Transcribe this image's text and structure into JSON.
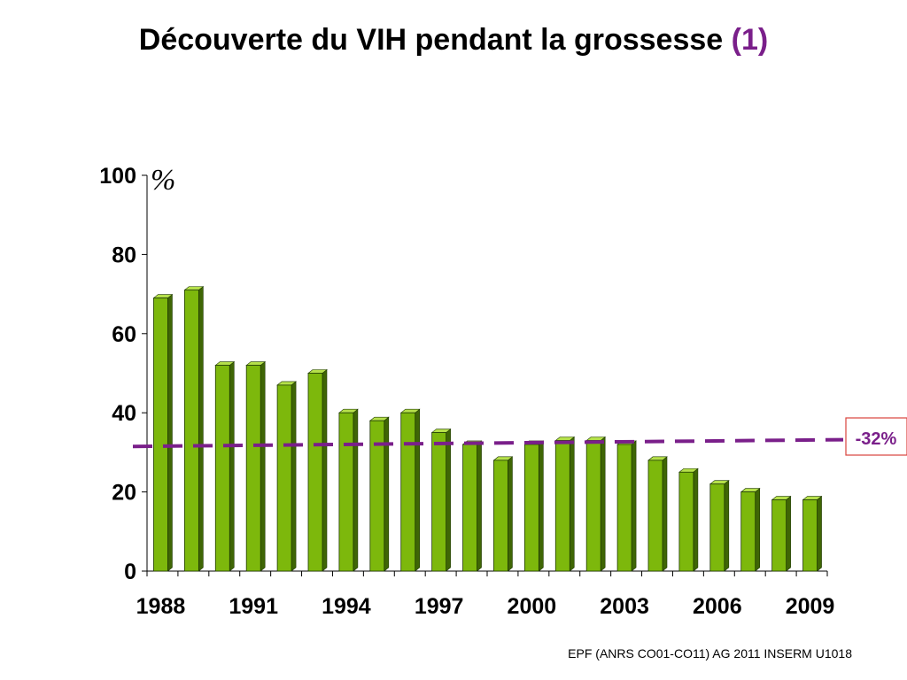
{
  "slide": {
    "title_main": "Découverte du VIH pendant la grossesse",
    "title_suffix": "(1)",
    "source": "EPF (ANRS CO01-CO11) AG 2011 INSERM U1018"
  },
  "colors": {
    "bar_front": "#7db80c",
    "bar_side": "#3f6605",
    "bar_top": "#b5e04a",
    "reference_line": "#7a1f8a",
    "annotation_border": "#d9443c",
    "title_accent": "#7a1f8a"
  },
  "chart_data": {
    "type": "bar",
    "title": "",
    "xlabel": "",
    "ylabel": "%",
    "ylim": [
      0,
      100
    ],
    "yticks": [
      0,
      20,
      40,
      60,
      80,
      100
    ],
    "xtick_labels": [
      "1988",
      "1991",
      "1994",
      "1997",
      "2000",
      "2003",
      "2006",
      "2009"
    ],
    "categories": [
      "1988",
      "1989",
      "1990",
      "1991",
      "1992",
      "1993",
      "1994",
      "1995",
      "1996",
      "1997",
      "1998",
      "1999",
      "2000",
      "2001",
      "2002",
      "2003",
      "2004",
      "2005",
      "2006",
      "2007",
      "2008",
      "2009"
    ],
    "values": [
      69,
      71,
      52,
      52,
      47,
      50,
      40,
      38,
      40,
      35,
      32,
      28,
      32,
      33,
      33,
      32,
      28,
      25,
      22,
      20,
      18,
      18
    ],
    "reference_line": {
      "start_value": 31.5,
      "end_value": 33.2,
      "style": "dashed"
    },
    "annotation": "-32%",
    "grid": false,
    "legend": "none"
  }
}
